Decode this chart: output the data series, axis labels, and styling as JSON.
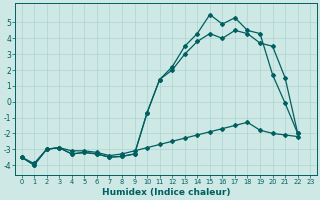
{
  "xlabel": "Humidex (Indice chaleur)",
  "background_color": "#cde8e5",
  "line_color": "#005f5f",
  "grid_color": "#afd4d0",
  "xlim": [
    -0.5,
    23.5
  ],
  "ylim": [
    -4.6,
    6.2
  ],
  "yticks": [
    -4,
    -3,
    -2,
    -1,
    0,
    1,
    2,
    3,
    4,
    5
  ],
  "xticks": [
    0,
    1,
    2,
    3,
    4,
    5,
    6,
    7,
    8,
    9,
    10,
    11,
    12,
    13,
    14,
    15,
    16,
    17,
    18,
    19,
    20,
    21,
    22,
    23
  ],
  "line1_x": [
    0,
    1,
    2,
    3,
    4,
    5,
    6,
    7,
    8,
    9,
    10,
    11,
    12,
    13,
    14,
    15,
    16,
    17,
    18,
    19,
    20,
    21,
    22
  ],
  "line1_y": [
    -3.5,
    -4.0,
    -3.0,
    -2.9,
    -3.3,
    -3.2,
    -3.3,
    -3.5,
    -3.45,
    -3.3,
    -0.7,
    1.4,
    2.2,
    3.5,
    4.3,
    5.5,
    4.9,
    5.3,
    4.5,
    4.3,
    1.7,
    -0.1,
    -2.0
  ],
  "line2_x": [
    0,
    1,
    2,
    3,
    4,
    5,
    6,
    7,
    8,
    9,
    10,
    11,
    12,
    13,
    14,
    15,
    16,
    17,
    18,
    19,
    20,
    21,
    22
  ],
  "line2_y": [
    -3.5,
    -4.0,
    -3.0,
    -2.9,
    -3.3,
    -3.2,
    -3.3,
    -3.5,
    -3.45,
    -3.3,
    -0.7,
    1.4,
    2.0,
    3.0,
    3.8,
    4.3,
    4.0,
    4.5,
    4.3,
    3.7,
    3.5,
    1.5,
    -2.0
  ],
  "line3_x": [
    0,
    1,
    2,
    3,
    4,
    5,
    6,
    7,
    8,
    9,
    10,
    11,
    12,
    13,
    14,
    15,
    16,
    17,
    18,
    19,
    20,
    21,
    22
  ],
  "line3_y": [
    -3.5,
    -3.9,
    -3.0,
    -2.9,
    -3.1,
    -3.1,
    -3.2,
    -3.4,
    -3.3,
    -3.1,
    -2.9,
    -2.7,
    -2.5,
    -2.3,
    -2.1,
    -1.9,
    -1.7,
    -1.5,
    -1.3,
    -1.8,
    -2.0,
    -2.1,
    -2.2
  ]
}
